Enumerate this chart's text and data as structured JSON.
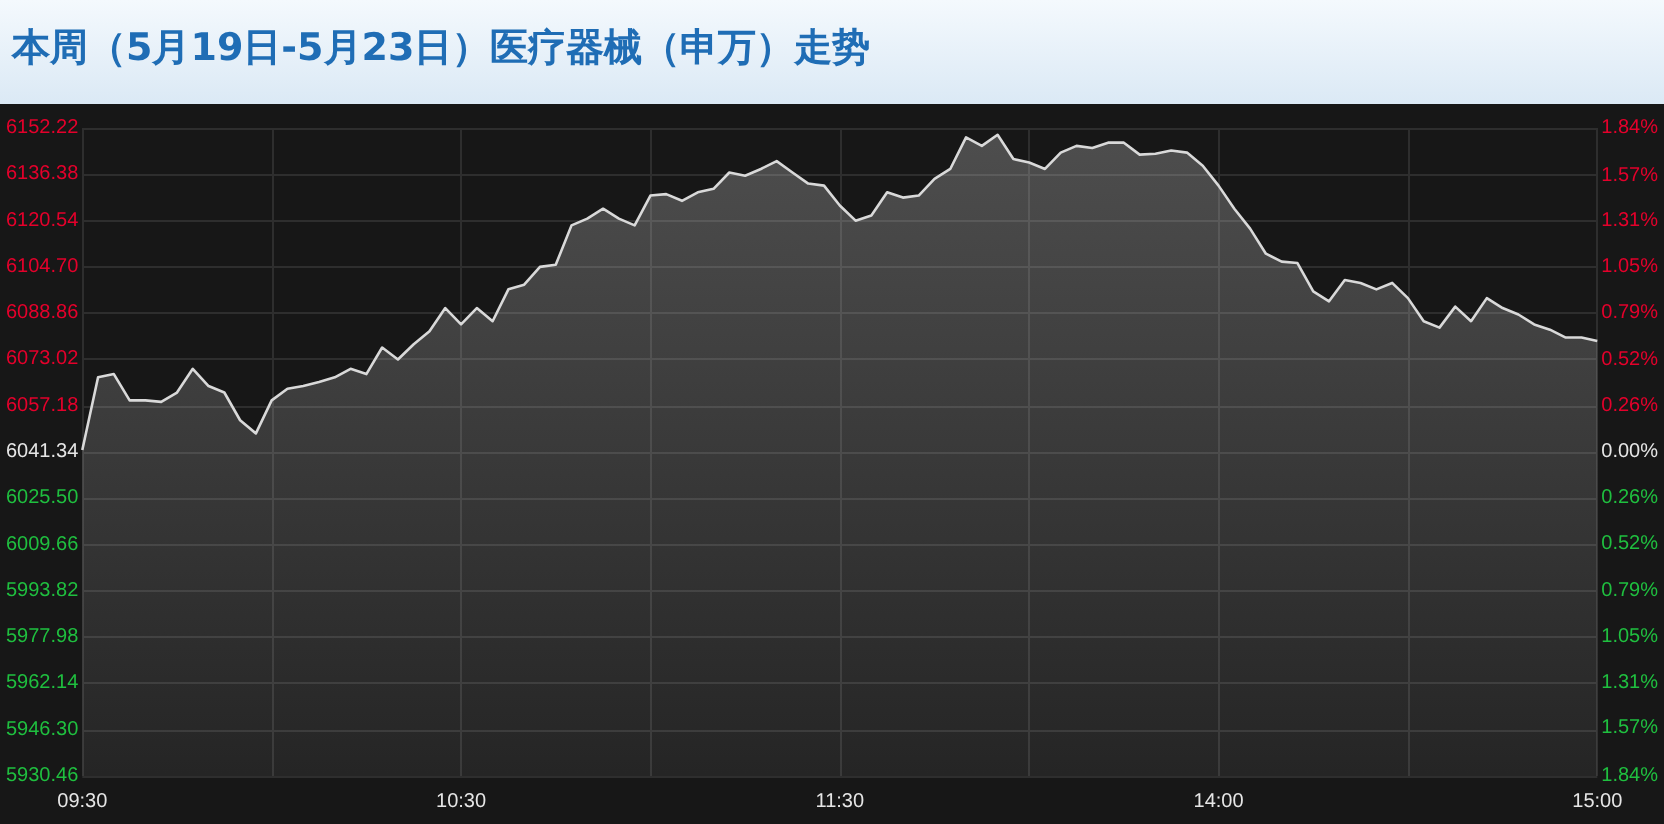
{
  "chart_data": {
    "type": "area",
    "title": "本周（5月19日-5月23日）医疗器械（申万）走势",
    "categories": [
      "09:30",
      null,
      null,
      null,
      null,
      null,
      null,
      null,
      null,
      null,
      null,
      null,
      null,
      null,
      null,
      null,
      null,
      null,
      null,
      null,
      null,
      null,
      null,
      null,
      "10:30",
      null,
      null,
      null,
      null,
      null,
      null,
      null,
      null,
      null,
      null,
      null,
      null,
      null,
      null,
      null,
      null,
      null,
      null,
      null,
      null,
      null,
      null,
      null,
      "11:30",
      null,
      null,
      null,
      null,
      null,
      null,
      null,
      null,
      null,
      null,
      null,
      null,
      null,
      null,
      null,
      null,
      null,
      null,
      null,
      null,
      null,
      null,
      null,
      "14:00",
      null,
      null,
      null,
      null,
      null,
      null,
      null,
      null,
      null,
      null,
      null,
      null,
      null,
      null,
      null,
      null,
      null,
      null,
      null,
      null,
      null,
      null,
      null,
      "15:00"
    ],
    "series": [
      {
        "color": "#d9d9d9",
        "values": [
          6042.0,
          6066.9,
          6068.0,
          6059.0,
          6059.0,
          6058.5,
          6061.7,
          6069.8,
          6063.9,
          6061.7,
          6052.2,
          6047.7,
          6059.0,
          6063.0,
          6063.9,
          6065.3,
          6066.9,
          6069.8,
          6068.0,
          6077.1,
          6073.0,
          6078.2,
          6082.7,
          6090.6,
          6085.0,
          6090.6,
          6086.1,
          6097.0,
          6098.6,
          6104.7,
          6105.4,
          6118.9,
          6121.2,
          6124.6,
          6121.2,
          6118.9,
          6129.1,
          6129.6,
          6127.3,
          6130.2,
          6131.4,
          6137.0,
          6135.9,
          6138.2,
          6140.9,
          6137.0,
          6133.2,
          6132.5,
          6125.7,
          6120.5,
          6122.3,
          6130.2,
          6128.4,
          6129.1,
          6134.8,
          6138.2,
          6149.0,
          6146.1,
          6149.9,
          6141.6,
          6140.4,
          6138.2,
          6143.8,
          6146.1,
          6145.4,
          6147.2,
          6147.2,
          6143.1,
          6143.4,
          6144.5,
          6143.8,
          6139.3,
          6132.5,
          6124.6,
          6117.8,
          6109.2,
          6106.5,
          6106.0,
          6096.3,
          6092.9,
          6100.2,
          6099.2,
          6097.0,
          6099.2,
          6094.0,
          6086.1,
          6083.9,
          6091.1,
          6086.1,
          6094.0,
          6090.6,
          6088.4,
          6085.0,
          6083.2,
          6080.5,
          6080.5,
          6079.3
        ]
      }
    ],
    "ylim": [
      5930.46,
      6152.22
    ],
    "yticks": [
      5930.46,
      {
        "value": 5946.3,
        "label": "5946.30"
      },
      5962.14,
      5977.98,
      5993.82,
      6009.66,
      {
        "value": 6025.5,
        "label": "6025.50"
      },
      6041.34,
      6057.18,
      6073.02,
      6088.86,
      {
        "value": 6104.7,
        "label": "6104.70"
      },
      6120.54,
      6136.38,
      6152.22
    ],
    "y2lim": [
      -1.84,
      1.84
    ],
    "y2ticks": [
      {
        "value": -1.84,
        "label": "1.84%"
      },
      {
        "value": -1.57,
        "label": "1.57%"
      },
      {
        "value": -1.31,
        "label": "1.31%"
      },
      {
        "value": -1.05,
        "label": "1.05%"
      },
      {
        "value": -0.79,
        "label": "0.79%"
      },
      {
        "value": -0.52,
        "label": "0.52%"
      },
      {
        "value": -0.26,
        "label": "0.26%"
      },
      {
        "value": 0,
        "label": "0.00%"
      },
      {
        "value": 0.26,
        "label": "0.26%"
      },
      {
        "value": 0.52,
        "label": "0.52%"
      },
      {
        "value": 0.79,
        "label": "0.79%"
      },
      {
        "value": 1.05,
        "label": "1.05%"
      },
      {
        "value": 1.31,
        "label": "1.31%"
      },
      {
        "value": 1.57,
        "label": "1.57%"
      },
      {
        "value": 1.84,
        "label": "1.84%"
      }
    ],
    "grid": true,
    "marker": "none"
  }
}
